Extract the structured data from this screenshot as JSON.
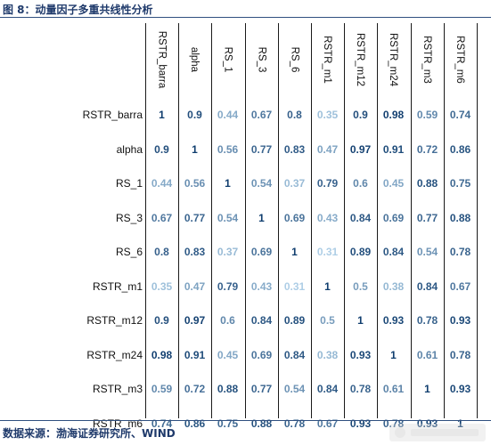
{
  "figure_title": "图 8：动量因子多重共线性分析",
  "source_note": "数据来源：渤海证券研究所、WIND",
  "factors": [
    "RSTR_barra",
    "alpha",
    "RS_1",
    "RS_3",
    "RS_6",
    "RSTR_m1",
    "RSTR_m12",
    "RSTR_m24",
    "RSTR_m3",
    "RSTR_m6"
  ],
  "matrix": [
    [
      "1",
      "0.9",
      "0.44",
      "0.67",
      "0.8",
      "0.35",
      "0.9",
      "0.98",
      "0.59",
      "0.74"
    ],
    [
      "0.9",
      "1",
      "0.56",
      "0.77",
      "0.83",
      "0.47",
      "0.97",
      "0.91",
      "0.72",
      "0.86"
    ],
    [
      "0.44",
      "0.56",
      "1",
      "0.54",
      "0.37",
      "0.79",
      "0.6",
      "0.45",
      "0.88",
      "0.75"
    ],
    [
      "0.67",
      "0.77",
      "0.54",
      "1",
      "0.69",
      "0.43",
      "0.84",
      "0.69",
      "0.77",
      "0.88"
    ],
    [
      "0.8",
      "0.83",
      "0.37",
      "0.69",
      "1",
      "0.31",
      "0.89",
      "0.84",
      "0.54",
      "0.78"
    ],
    [
      "0.35",
      "0.47",
      "0.79",
      "0.43",
      "0.31",
      "1",
      "0.5",
      "0.38",
      "0.84",
      "0.67"
    ],
    [
      "0.9",
      "0.97",
      "0.6",
      "0.84",
      "0.89",
      "0.5",
      "1",
      "0.93",
      "0.78",
      "0.93"
    ],
    [
      "0.98",
      "0.91",
      "0.45",
      "0.69",
      "0.84",
      "0.38",
      "0.93",
      "1",
      "0.61",
      "0.78"
    ],
    [
      "0.59",
      "0.72",
      "0.88",
      "0.77",
      "0.54",
      "0.84",
      "0.78",
      "0.61",
      "1",
      "0.93"
    ],
    [
      "0.74",
      "0.86",
      "0.75",
      "0.88",
      "0.78",
      "0.67",
      "0.93",
      "0.78",
      "0.93",
      "1"
    ]
  ],
  "colors": {
    "low": "#b3d3ea",
    "high": "#0f3d6e",
    "title": "#1f3a6b"
  }
}
